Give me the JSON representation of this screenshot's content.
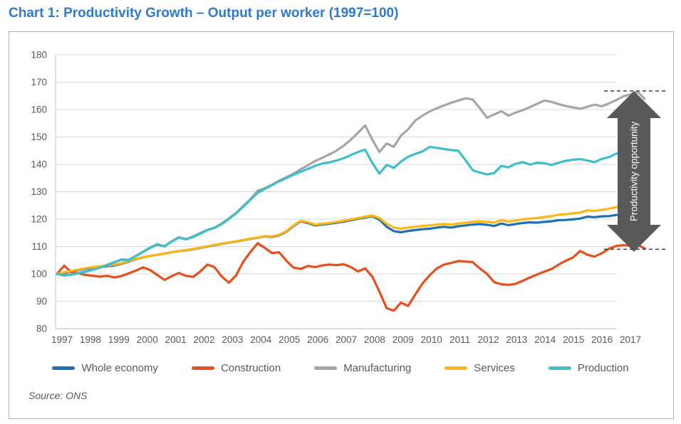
{
  "title": "Chart 1: Productivity Growth – Output per worker (1997=100)",
  "source": "Source: ONS",
  "annotation": {
    "arrow_label": "Productivity opportunity",
    "arrow_color": "#595959",
    "label_color": "#ffffff"
  },
  "colors": {
    "title": "#2e7ad1",
    "grid": "#d9d9d9",
    "axis_frame": "#c6c6c6",
    "tick_text": "#595959",
    "dashed_guides": "#3f3f3f",
    "panel_border": "#b3b3b3"
  },
  "legend": {
    "items": [
      {
        "label": "Whole economy",
        "color": "#1f6fb4"
      },
      {
        "label": "Construction",
        "color": "#e84e1b"
      },
      {
        "label": "Manufacturing",
        "color": "#a5a5a5"
      },
      {
        "label": "Services",
        "color": "#fdb714"
      },
      {
        "label": "Production",
        "color": "#3ebec8"
      }
    ]
  },
  "chart_data": {
    "type": "line",
    "title": "Chart 1: Productivity Growth – Output per worker (1997=100)",
    "x_start_year": 1997,
    "x_step_years": 0.25,
    "x_tick_labels": [
      "1997",
      "1998",
      "1999",
      "2000",
      "2001",
      "2002",
      "2003",
      "2004",
      "2005",
      "2006",
      "2007",
      "2008",
      "2009",
      "2010",
      "2011",
      "2012",
      "2013",
      "2014",
      "2015",
      "2016",
      "2017"
    ],
    "ylim": [
      80,
      180
    ],
    "y_ticks": [
      80,
      90,
      100,
      110,
      120,
      130,
      140,
      150,
      160,
      170,
      180
    ],
    "grid": true,
    "legend_position": "bottom",
    "annotations": {
      "dashed_top_value": 166.8,
      "dashed_bottom_value": 109.0
    },
    "series": [
      {
        "name": "Whole economy",
        "color": "#1f6fb4",
        "values": [
          100.0,
          100.4,
          100.9,
          101.4,
          101.9,
          102.2,
          102.5,
          102.8,
          103.1,
          103.7,
          104.5,
          105.4,
          106.0,
          106.6,
          107.0,
          107.4,
          107.9,
          108.3,
          108.6,
          109.0,
          109.5,
          110.0,
          110.5,
          111.0,
          111.4,
          111.8,
          112.3,
          112.8,
          113.2,
          113.7,
          113.5,
          114.1,
          115.4,
          117.5,
          119.2,
          118.6,
          117.7,
          118.0,
          118.3,
          118.7,
          119.1,
          119.6,
          120.1,
          120.6,
          121.0,
          119.8,
          117.2,
          115.6,
          115.2,
          115.7,
          116.0,
          116.3,
          116.5,
          116.9,
          117.2,
          116.9,
          117.4,
          117.7,
          118.0,
          118.2,
          117.9,
          117.5,
          118.4,
          117.8,
          118.2,
          118.6,
          118.8,
          118.7,
          119.0,
          119.2,
          119.6,
          119.7,
          119.9,
          120.2,
          120.9,
          120.7,
          121.0,
          121.1,
          121.5,
          121.7,
          121.9,
          122.1,
          121.9
        ]
      },
      {
        "name": "Construction",
        "color": "#e84e1b",
        "values": [
          100.0,
          103.0,
          100.6,
          100.2,
          99.6,
          99.3,
          99.0,
          99.3,
          98.7,
          99.2,
          100.2,
          101.2,
          102.4,
          101.4,
          99.6,
          97.8,
          99.2,
          100.3,
          99.3,
          98.9,
          100.9,
          103.4,
          102.4,
          99.0,
          96.8,
          99.5,
          104.5,
          108.0,
          111.2,
          109.5,
          107.6,
          107.9,
          104.8,
          102.3,
          101.8,
          102.9,
          102.5,
          103.1,
          103.4,
          103.2,
          103.5,
          102.5,
          100.9,
          102.0,
          99.0,
          93.5,
          87.5,
          86.6,
          89.5,
          88.3,
          92.5,
          96.5,
          99.5,
          102.0,
          103.4,
          104.0,
          104.7,
          104.5,
          104.3,
          102.0,
          100.0,
          97.0,
          96.2,
          96.0,
          96.4,
          97.5,
          98.7,
          99.8,
          100.8,
          101.8,
          103.4,
          104.8,
          106.0,
          108.4,
          107.0,
          106.3,
          107.5,
          109.2,
          110.2,
          110.5,
          110.3,
          110.6,
          109.3
        ]
      },
      {
        "name": "Manufacturing",
        "color": "#a5a5a5",
        "values": [
          100.0,
          99.5,
          99.8,
          100.3,
          100.9,
          101.6,
          102.4,
          103.3,
          104.3,
          105.3,
          105.1,
          106.6,
          108.1,
          109.6,
          110.9,
          110.1,
          111.9,
          113.4,
          112.7,
          113.7,
          114.9,
          116.1,
          116.9,
          118.4,
          120.3,
          122.3,
          124.8,
          127.3,
          130.4,
          131.3,
          132.6,
          134.0,
          135.3,
          136.6,
          138.2,
          139.6,
          141.2,
          142.4,
          143.6,
          145.0,
          146.8,
          149.0,
          151.5,
          154.2,
          149.0,
          144.5,
          147.6,
          146.4,
          150.5,
          152.8,
          156.0,
          157.8,
          159.3,
          160.5,
          161.5,
          162.5,
          163.3,
          164.1,
          163.7,
          160.5,
          157.0,
          158.2,
          159.4,
          157.8,
          158.9,
          159.8,
          160.9,
          162.1,
          163.3,
          162.8,
          162.0,
          161.3,
          160.8,
          160.3,
          161.0,
          161.8,
          161.2,
          162.2,
          163.4,
          164.8,
          165.5,
          166.5,
          163.9
        ]
      },
      {
        "name": "Services",
        "color": "#fdb714",
        "values": [
          100.0,
          100.6,
          101.1,
          101.6,
          102.1,
          102.5,
          102.8,
          103.1,
          103.4,
          103.9,
          104.7,
          105.5,
          106.0,
          106.6,
          107.0,
          107.4,
          107.9,
          108.3,
          108.7,
          109.1,
          109.6,
          110.1,
          110.6,
          111.1,
          111.5,
          111.9,
          112.4,
          112.9,
          113.3,
          113.8,
          113.7,
          114.3,
          115.6,
          117.7,
          119.4,
          118.9,
          118.0,
          118.3,
          118.6,
          119.0,
          119.4,
          119.9,
          120.4,
          120.9,
          121.3,
          120.4,
          118.3,
          116.9,
          116.5,
          116.9,
          117.2,
          117.5,
          117.7,
          118.0,
          118.2,
          118.0,
          118.4,
          118.7,
          119.0,
          119.2,
          119.0,
          118.7,
          119.6,
          119.1,
          119.5,
          119.9,
          120.2,
          120.4,
          120.8,
          121.1,
          121.6,
          121.8,
          122.1,
          122.4,
          123.2,
          123.0,
          123.4,
          123.8,
          124.4,
          124.8,
          125.3,
          125.6,
          125.7
        ]
      },
      {
        "name": "Production",
        "color": "#3ebec8",
        "values": [
          100.0,
          99.4,
          99.7,
          100.2,
          100.8,
          101.5,
          102.3,
          103.2,
          104.2,
          105.2,
          105.0,
          106.5,
          108.0,
          109.5,
          110.7,
          110.0,
          111.8,
          113.2,
          112.6,
          113.5,
          114.7,
          116.0,
          116.8,
          118.2,
          120.1,
          122.1,
          124.6,
          127.1,
          129.6,
          131.0,
          132.4,
          133.8,
          135.0,
          136.2,
          137.3,
          138.3,
          139.4,
          140.3,
          140.7,
          141.4,
          142.2,
          143.4,
          144.5,
          145.4,
          140.5,
          136.6,
          139.8,
          138.7,
          141.0,
          142.8,
          143.8,
          144.7,
          146.4,
          146.0,
          145.6,
          145.2,
          145.0,
          141.5,
          137.9,
          137.0,
          136.3,
          136.8,
          139.4,
          138.9,
          140.2,
          140.8,
          139.9,
          140.6,
          140.4,
          139.8,
          140.6,
          141.3,
          141.7,
          141.9,
          141.4,
          140.8,
          142.0,
          142.6,
          143.9,
          144.6,
          145.0,
          145.7,
          143.4
        ]
      }
    ]
  }
}
